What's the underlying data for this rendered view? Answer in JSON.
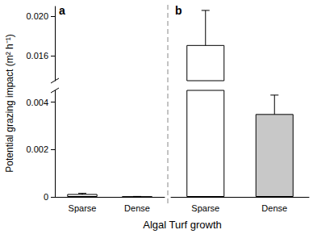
{
  "chart_data": {
    "type": "bar",
    "ylabel": "Potential grazing impact (m² h⁻¹)",
    "xlabel": "Algal Turf growth",
    "ylim": [
      0,
      0.021
    ],
    "ybreak": [
      0.0045,
      0.0135
    ],
    "yticks": [
      0,
      0.002,
      0.004,
      0.016,
      {
        "value": 0.02,
        "label": "0.020"
      }
    ],
    "panels": [
      {
        "title": "a",
        "categories": [
          "Sparse",
          "Dense"
        ],
        "values": [
          0.00012,
          1e-05
        ],
        "errors": [
          3e-05,
          1e-05
        ],
        "colors": [
          "#ffffff",
          "#c8c8c8"
        ]
      },
      {
        "title": "b",
        "categories": [
          "Sparse",
          "Dense"
        ],
        "values": [
          0.0171,
          0.0035
        ],
        "errors": [
          0.0035,
          0.0008
        ],
        "colors": [
          "#ffffff",
          "#c8c8c8"
        ]
      }
    ]
  }
}
